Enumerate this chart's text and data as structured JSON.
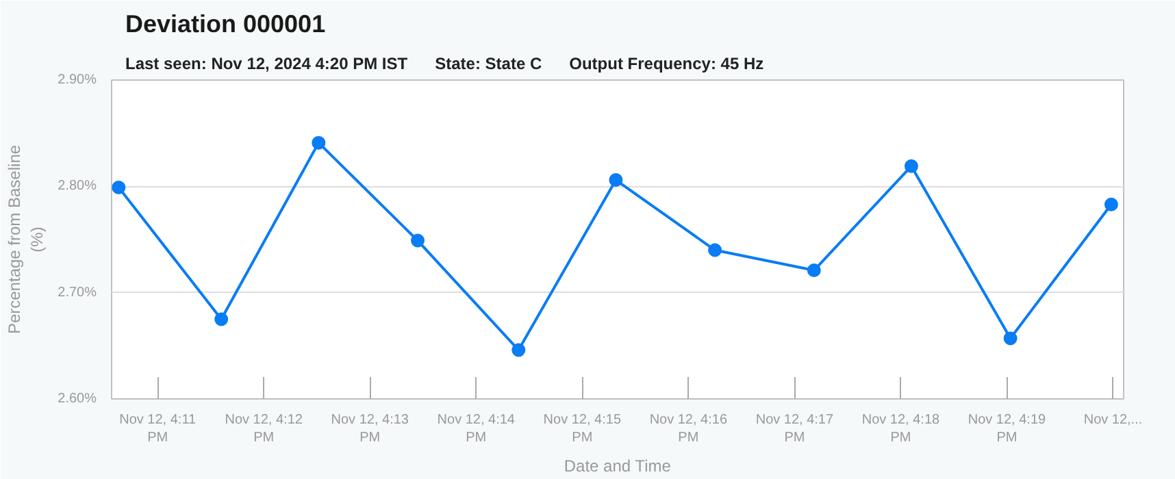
{
  "chart_data": {
    "type": "line",
    "title": "Deviation 000001",
    "subtitle": "Last seen: Nov 12, 2024 4:20 PM IST      State: State C      Output Frequency: 45 Hz",
    "xlabel": "Date and Time",
    "ylabel": "Percentage from Baseline (%)",
    "x": [
      "2024-11-12T16:10:38",
      "2024-11-12T16:11:36",
      "2024-11-12T16:12:31",
      "2024-11-12T16:13:27",
      "2024-11-12T16:14:24",
      "2024-11-12T16:15:19",
      "2024-11-12T16:16:15",
      "2024-11-12T16:17:11",
      "2024-11-12T16:18:06",
      "2024-11-12T16:19:02",
      "2024-11-12T16:19:59"
    ],
    "series": [
      {
        "color": "#0a7cf5",
        "values": [
          2.799,
          2.675,
          2.841,
          2.749,
          2.646,
          2.806,
          2.74,
          2.721,
          2.819,
          2.657,
          2.783
        ]
      }
    ],
    "xlim": [
      "2024-11-12T16:10:34",
      "2024-11-12T16:20:06"
    ],
    "xticks": [
      {
        "value": "2024-11-12T16:11",
        "label": "Nov 12, 4:11 PM"
      },
      {
        "value": "2024-11-12T16:12",
        "label": "Nov 12, 4:12 PM"
      },
      {
        "value": "2024-11-12T16:13",
        "label": "Nov 12, 4:13 PM"
      },
      {
        "value": "2024-11-12T16:14",
        "label": "Nov 12, 4:14 PM"
      },
      {
        "value": "2024-11-12T16:15",
        "label": "Nov 12, 4:15 PM"
      },
      {
        "value": "2024-11-12T16:16",
        "label": "Nov 12, 4:16 PM"
      },
      {
        "value": "2024-11-12T16:17",
        "label": "Nov 12, 4:17 PM"
      },
      {
        "value": "2024-11-12T16:18",
        "label": "Nov 12, 4:18 PM"
      },
      {
        "value": "2024-11-12T16:19",
        "label": "Nov 12, 4:19 PM"
      },
      {
        "value": "2024-11-12T16:20",
        "label": "Nov 12,..."
      }
    ],
    "ylim": [
      2.6,
      2.9
    ],
    "yticks": [
      {
        "value": 2.6,
        "label": "2.60%"
      },
      {
        "value": 2.7,
        "label": "2.70%"
      },
      {
        "value": 2.8,
        "label": "2.80%"
      },
      {
        "value": 2.9,
        "label": "2.90%"
      }
    ],
    "grid": "y",
    "marker": "circle",
    "line_style": "solid"
  }
}
